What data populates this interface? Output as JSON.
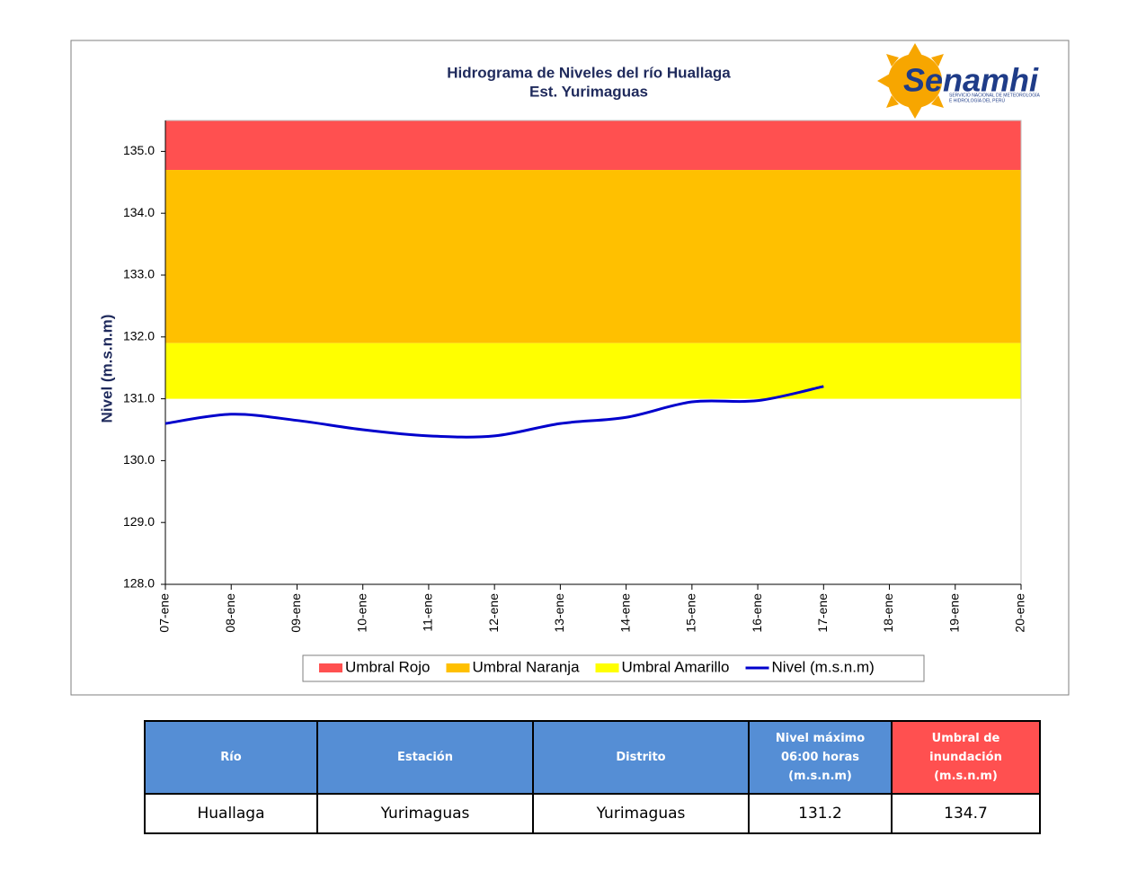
{
  "chart_data": {
    "type": "line",
    "title": "Hidrograma de Niveles del río Huallaga",
    "subtitle": "Est. Yurimaguas",
    "y_label": "Nivel (m.s.n.m)",
    "categories": [
      "07-ene",
      "08-ene",
      "09-ene",
      "10-ene",
      "11-ene",
      "12-ene",
      "13-ene",
      "14-ene",
      "15-ene",
      "16-ene",
      "17-ene",
      "18-ene",
      "19-ene",
      "20-ene"
    ],
    "series": [
      {
        "name": "Nivel (m.s.n.m)",
        "color": "#0000cc",
        "values": [
          130.6,
          130.75,
          130.65,
          130.5,
          130.4,
          130.4,
          130.6,
          130.7,
          130.95,
          130.97,
          131.2,
          null,
          null,
          null
        ]
      }
    ],
    "thresholds": [
      {
        "name": "Umbral Rojo",
        "color": "#ff5050",
        "from": 134.7,
        "to": 135.5
      },
      {
        "name": "Umbral Naranja",
        "color": "#ffc000",
        "from": 131.9,
        "to": 134.7
      },
      {
        "name": "Umbral Amarillo",
        "color": "#ffff00",
        "from": 131.0,
        "to": 131.9
      }
    ],
    "ylim": [
      128,
      135.5
    ],
    "yticks": [
      {
        "value": 128,
        "label": "128.0"
      },
      {
        "value": 129,
        "label": "129.0"
      },
      {
        "value": 130,
        "label": "130.0"
      },
      {
        "value": 131,
        "label": "131.0"
      },
      {
        "value": 132,
        "label": "132.0"
      },
      {
        "value": 133,
        "label": "133.0"
      },
      {
        "value": 134,
        "label": "134.0"
      },
      {
        "value": 135,
        "label": "135.0"
      }
    ],
    "legend": "bottom",
    "logo": {
      "name": "Senamhi",
      "line1": "SERVICIO NACIONAL DE METEOROLOGÍA",
      "line2": "E HIDROLOGÍA DEL PERÚ"
    }
  },
  "table": {
    "header": [
      "Río",
      "Estación",
      "Distrito",
      "Nivel máximo 06:00 horas (m.s.n.m)",
      "Umbral de inundación (m.s.n.m)"
    ],
    "rows": [
      [
        "Huallaga",
        "Yurimaguas",
        "Yurimaguas",
        "131.2",
        "134.7"
      ]
    ]
  }
}
